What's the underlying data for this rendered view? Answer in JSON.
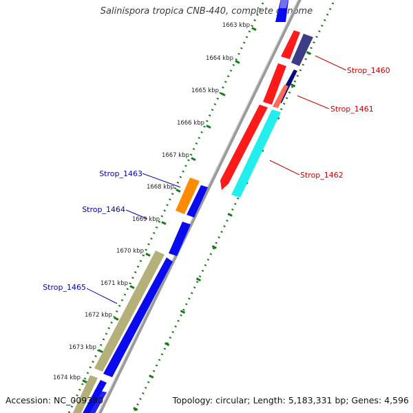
{
  "title": "Salinispora tropica CNB-440, complete genome",
  "accession_label": "Accession: NC_009380",
  "topology_label": "Topology: circular; Length: 5,183,331 bp; Genes: 4,596",
  "tick_labels": [
    "1663 kbp",
    "1664 kbp",
    "1665 kbp",
    "1666 kbp",
    "1667 kbp",
    "1668 kbp",
    "1669 kbp",
    "1670 kbp",
    "1671 kbp",
    "1672 kbp",
    "1673 kbp",
    "1674 kbp"
  ],
  "gene_labels": {
    "strop_1460": "Strop_1460",
    "strop_1461": "Strop_1461",
    "strop_1462": "Strop_1462",
    "strop_1463": "Strop_1463",
    "strop_1464": "Strop_1464",
    "strop_1465": "Strop_1465"
  },
  "colors": {
    "backbone": "#8a8a8a",
    "ticks": "#1a7a1a",
    "forward_label": "#cc0000",
    "reverse_label": "#0000bb",
    "red_gene": "#ff1a1a",
    "light_red_gene": "#ff6a5a",
    "blue_gene": "#0a0af0",
    "navy_gene": "#0a0a80",
    "slate_gene": "#3d3d85",
    "cyan_gene": "#22eeee",
    "orange_gene": "#ff8c00",
    "khaki_gene": "#b4b07a"
  }
}
